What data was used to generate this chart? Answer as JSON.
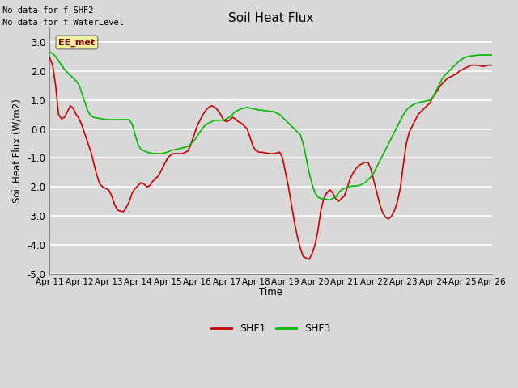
{
  "title": "Soil Heat Flux",
  "ylabel": "Soil Heat Flux (W/m2)",
  "xlabel": "Time",
  "xlim": [
    0,
    15
  ],
  "ylim": [
    -5.0,
    3.5
  ],
  "yticks": [
    -5.0,
    -4.0,
    -3.0,
    -2.0,
    -1.0,
    0.0,
    1.0,
    2.0,
    3.0
  ],
  "xtick_labels": [
    "Apr 11",
    "Apr 12",
    "Apr 13",
    "Apr 14",
    "Apr 15",
    "Apr 16",
    "Apr 17",
    "Apr 18",
    "Apr 19",
    "Apr 20",
    "Apr 21",
    "Apr 22",
    "Apr 23",
    "Apr 24",
    "Apr 25",
    "Apr 26"
  ],
  "annotations": [
    "No data for f_SHF2",
    "No data for f_WaterLevel"
  ],
  "box_label": "EE_met",
  "background_color": "#d8d8d8",
  "plot_bg_color": "#d8d8d8",
  "grid_color": "#ffffff",
  "shf1_color": "#cc0000",
  "shf3_color": "#00bb00",
  "shf1_x": [
    0.0,
    0.1,
    0.2,
    0.3,
    0.4,
    0.5,
    0.6,
    0.7,
    0.8,
    0.9,
    1.0,
    1.1,
    1.2,
    1.3,
    1.4,
    1.5,
    1.6,
    1.7,
    1.8,
    1.9,
    2.0,
    2.1,
    2.2,
    2.3,
    2.4,
    2.5,
    2.6,
    2.7,
    2.8,
    2.9,
    3.0,
    3.1,
    3.2,
    3.3,
    3.4,
    3.5,
    3.6,
    3.7,
    3.8,
    3.9,
    4.0,
    4.1,
    4.2,
    4.3,
    4.4,
    4.5,
    4.6,
    4.7,
    4.8,
    4.9,
    5.0,
    5.1,
    5.2,
    5.3,
    5.4,
    5.5,
    5.6,
    5.7,
    5.8,
    5.9,
    6.0,
    6.1,
    6.2,
    6.3,
    6.4,
    6.5,
    6.6,
    6.7,
    6.8,
    6.9,
    7.0,
    7.1,
    7.2,
    7.3,
    7.4,
    7.5,
    7.6,
    7.7,
    7.8,
    7.9,
    8.0,
    8.1,
    8.2,
    8.3,
    8.4,
    8.5,
    8.6,
    8.7,
    8.8,
    8.9,
    9.0,
    9.1,
    9.2,
    9.3,
    9.4,
    9.5,
    9.6,
    9.7,
    9.8,
    9.9,
    10.0,
    10.1,
    10.2,
    10.3,
    10.4,
    10.5,
    10.6,
    10.7,
    10.8,
    10.9,
    11.0,
    11.1,
    11.2,
    11.3,
    11.4,
    11.5,
    11.6,
    11.7,
    11.8,
    11.9,
    12.0,
    12.1,
    12.2,
    12.3,
    12.4,
    12.5,
    12.6,
    12.7,
    12.8,
    12.9,
    13.0,
    13.1,
    13.2,
    13.3,
    13.4,
    13.5,
    13.6,
    13.7,
    13.8,
    13.9,
    14.0,
    14.1,
    14.2,
    14.3,
    14.4,
    14.5,
    14.6,
    14.7,
    14.8,
    14.9,
    15.0
  ],
  "shf1_y": [
    2.45,
    2.2,
    1.5,
    0.5,
    0.35,
    0.4,
    0.6,
    0.8,
    0.7,
    0.5,
    0.35,
    0.1,
    -0.2,
    -0.5,
    -0.8,
    -1.2,
    -1.6,
    -1.9,
    -2.0,
    -2.05,
    -2.1,
    -2.3,
    -2.6,
    -2.8,
    -2.83,
    -2.85,
    -2.7,
    -2.5,
    -2.2,
    -2.05,
    -1.95,
    -1.85,
    -1.9,
    -2.0,
    -1.95,
    -1.8,
    -1.7,
    -1.6,
    -1.4,
    -1.2,
    -1.0,
    -0.9,
    -0.85,
    -0.85,
    -0.85,
    -0.85,
    -0.8,
    -0.75,
    -0.5,
    -0.2,
    0.1,
    0.3,
    0.5,
    0.65,
    0.75,
    0.8,
    0.75,
    0.65,
    0.5,
    0.3,
    0.25,
    0.3,
    0.4,
    0.35,
    0.25,
    0.2,
    0.1,
    0.0,
    -0.3,
    -0.6,
    -0.75,
    -0.8,
    -0.8,
    -0.82,
    -0.84,
    -0.85,
    -0.85,
    -0.83,
    -0.8,
    -1.0,
    -1.5,
    -2.0,
    -2.6,
    -3.2,
    -3.7,
    -4.1,
    -4.4,
    -4.45,
    -4.5,
    -4.3,
    -4.0,
    -3.5,
    -2.8,
    -2.4,
    -2.2,
    -2.1,
    -2.2,
    -2.4,
    -2.5,
    -2.4,
    -2.3,
    -2.0,
    -1.7,
    -1.5,
    -1.35,
    -1.25,
    -1.2,
    -1.15,
    -1.15,
    -1.4,
    -1.8,
    -2.2,
    -2.6,
    -2.9,
    -3.05,
    -3.1,
    -3.0,
    -2.8,
    -2.5,
    -2.0,
    -1.2,
    -0.5,
    -0.1,
    0.1,
    0.3,
    0.5,
    0.6,
    0.7,
    0.8,
    0.9,
    1.1,
    1.25,
    1.4,
    1.55,
    1.65,
    1.75,
    1.8,
    1.85,
    1.9,
    2.0,
    2.05,
    2.1,
    2.15,
    2.2,
    2.2,
    2.2,
    2.18,
    2.15,
    2.18,
    2.2,
    2.2
  ],
  "shf3_x": [
    0.0,
    0.1,
    0.2,
    0.3,
    0.4,
    0.5,
    0.6,
    0.7,
    0.8,
    0.9,
    1.0,
    1.1,
    1.2,
    1.3,
    1.4,
    1.5,
    1.6,
    1.7,
    1.8,
    1.9,
    2.0,
    2.1,
    2.2,
    2.3,
    2.4,
    2.5,
    2.6,
    2.7,
    2.8,
    2.9,
    3.0,
    3.1,
    3.2,
    3.3,
    3.4,
    3.5,
    3.6,
    3.7,
    3.8,
    3.9,
    4.0,
    4.1,
    4.2,
    4.3,
    4.4,
    4.5,
    4.6,
    4.7,
    4.8,
    4.9,
    5.0,
    5.1,
    5.2,
    5.3,
    5.4,
    5.5,
    5.6,
    5.7,
    5.8,
    5.9,
    6.0,
    6.1,
    6.2,
    6.3,
    6.4,
    6.5,
    6.6,
    6.7,
    6.8,
    6.9,
    7.0,
    7.1,
    7.2,
    7.3,
    7.4,
    7.5,
    7.6,
    7.7,
    7.8,
    7.9,
    8.0,
    8.1,
    8.2,
    8.3,
    8.4,
    8.5,
    8.6,
    8.7,
    8.8,
    8.9,
    9.0,
    9.1,
    9.2,
    9.3,
    9.4,
    9.5,
    9.6,
    9.7,
    9.8,
    9.9,
    10.0,
    10.1,
    10.2,
    10.3,
    10.4,
    10.5,
    10.6,
    10.7,
    10.8,
    10.9,
    11.0,
    11.1,
    11.2,
    11.3,
    11.4,
    11.5,
    11.6,
    11.7,
    11.8,
    11.9,
    12.0,
    12.1,
    12.2,
    12.3,
    12.4,
    12.5,
    12.6,
    12.7,
    12.8,
    12.9,
    13.0,
    13.1,
    13.2,
    13.3,
    13.4,
    13.5,
    13.6,
    13.7,
    13.8,
    13.9,
    14.0,
    14.1,
    14.2,
    14.3,
    14.4,
    14.5,
    14.6,
    14.7,
    14.8,
    14.9,
    15.0
  ],
  "shf3_y": [
    2.65,
    2.6,
    2.5,
    2.35,
    2.2,
    2.05,
    1.95,
    1.85,
    1.75,
    1.65,
    1.5,
    1.2,
    0.9,
    0.6,
    0.45,
    0.4,
    0.38,
    0.36,
    0.34,
    0.33,
    0.32,
    0.32,
    0.32,
    0.32,
    0.32,
    0.32,
    0.32,
    0.32,
    0.15,
    -0.2,
    -0.55,
    -0.7,
    -0.75,
    -0.8,
    -0.82,
    -0.85,
    -0.85,
    -0.85,
    -0.85,
    -0.82,
    -0.8,
    -0.75,
    -0.72,
    -0.7,
    -0.68,
    -0.65,
    -0.63,
    -0.6,
    -0.5,
    -0.4,
    -0.25,
    -0.1,
    0.05,
    0.15,
    0.2,
    0.25,
    0.3,
    0.3,
    0.3,
    0.3,
    0.35,
    0.4,
    0.5,
    0.6,
    0.65,
    0.7,
    0.72,
    0.75,
    0.72,
    0.7,
    0.68,
    0.65,
    0.65,
    0.63,
    0.62,
    0.6,
    0.6,
    0.55,
    0.5,
    0.4,
    0.3,
    0.2,
    0.1,
    0.0,
    -0.1,
    -0.2,
    -0.5,
    -1.0,
    -1.5,
    -1.9,
    -2.2,
    -2.35,
    -2.4,
    -2.42,
    -2.43,
    -2.45,
    -2.4,
    -2.35,
    -2.2,
    -2.1,
    -2.05,
    -2.0,
    -1.98,
    -1.97,
    -1.96,
    -1.95,
    -1.9,
    -1.85,
    -1.75,
    -1.65,
    -1.5,
    -1.3,
    -1.1,
    -0.9,
    -0.7,
    -0.5,
    -0.3,
    -0.1,
    0.1,
    0.3,
    0.5,
    0.65,
    0.75,
    0.82,
    0.87,
    0.9,
    0.93,
    0.95,
    0.97,
    1.0,
    1.1,
    1.3,
    1.5,
    1.7,
    1.85,
    1.95,
    2.05,
    2.15,
    2.25,
    2.35,
    2.42,
    2.47,
    2.5,
    2.52,
    2.53,
    2.54,
    2.55,
    2.55,
    2.55,
    2.55,
    2.55
  ]
}
